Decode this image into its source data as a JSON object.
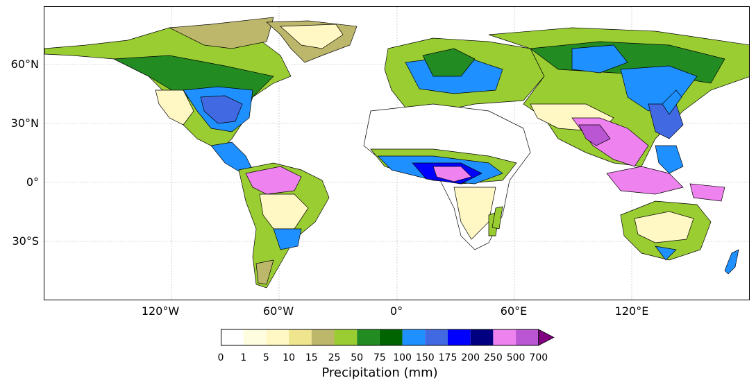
{
  "map": {
    "lat_ticks": [
      "60°N",
      "30°N",
      "0°",
      "30°S"
    ],
    "lon_ticks": [
      "120°W",
      "60°W",
      "0°",
      "60°E",
      "120°E"
    ]
  },
  "colorbar": {
    "title": "Precipitation (mm)",
    "ticks": [
      "0",
      "1",
      "5",
      "10",
      "15",
      "25",
      "50",
      "75",
      "100",
      "150",
      "175",
      "200",
      "250",
      "500",
      "700"
    ],
    "colors": [
      "#ffffff",
      "#fffde0",
      "#fff8c4",
      "#efe58f",
      "#bdb76b",
      "#9acd32",
      "#228b22",
      "#006400",
      "#1e90ff",
      "#4169e1",
      "#0000ff",
      "#000080",
      "#ee82ee",
      "#ba55d3"
    ],
    "extend_color": "#800080"
  }
}
